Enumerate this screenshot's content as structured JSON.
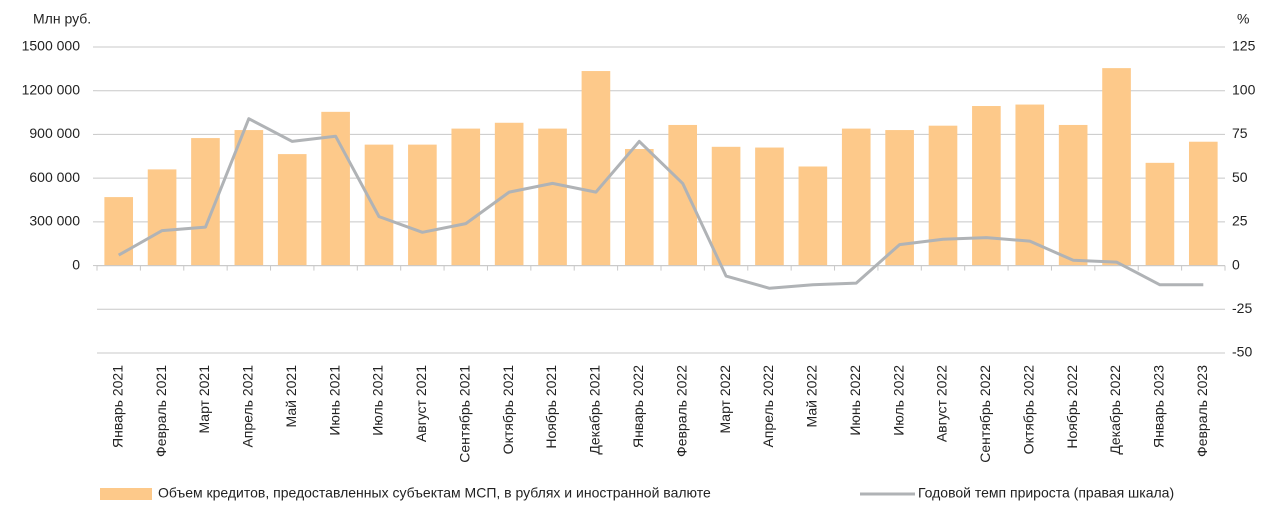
{
  "chart_data": {
    "type": "bar",
    "y_label": "Млн руб.",
    "y2_label": "%",
    "categories": [
      "Январь 2021",
      "Февраль 2021",
      "Март 2021",
      "Апрель 2021",
      "Май 2021",
      "Июнь 2021",
      "Июль 2021",
      "Август 2021",
      "Сентябрь 2021",
      "Октябрь 2021",
      "Ноябрь 2021",
      "Декабрь 2021",
      "Январь 2022",
      "Февраль 2022",
      "Март 2022",
      "Апрель 2022",
      "Май 2022",
      "Июнь 2022",
      "Июль 2022",
      "Август 2022",
      "Сентябрь 2022",
      "Октябрь 2022",
      "Ноябрь 2022",
      "Декабрь 2022",
      "Январь 2023",
      "Февраль 2023"
    ],
    "series": [
      {
        "name": "Объем кредитов, предоставленных субъектам МСП, в рублях и иностранной валюте",
        "type": "bar",
        "color": "#fdc98a",
        "values": [
          470000,
          660000,
          875000,
          930000,
          765000,
          1055000,
          830000,
          830000,
          940000,
          980000,
          940000,
          1335000,
          800000,
          965000,
          815000,
          810000,
          680000,
          940000,
          930000,
          960000,
          1095000,
          1105000,
          965000,
          1355000,
          705000,
          850000
        ]
      },
      {
        "name": "Годовой темп прироста (правая шкала)",
        "type": "line",
        "axis": "y2",
        "color": "#b0b3b6",
        "values": [
          6,
          20,
          22,
          84,
          71,
          74,
          28,
          19,
          24,
          42,
          47,
          42,
          71,
          47,
          -6,
          -13,
          -11,
          -10,
          12,
          15,
          16,
          14,
          3,
          2,
          -11,
          -11
        ]
      }
    ],
    "ylim": [
      -600000,
      1500000
    ],
    "yticks": [
      0,
      {
        "value": 300000,
        "label": "300 000"
      },
      {
        "value": 600000,
        "label": "600 000"
      },
      {
        "value": 900000,
        "label": "900 000"
      },
      {
        "value": 1200000,
        "label": "1200 000"
      },
      {
        "value": 1500000,
        "label": "1500 000"
      }
    ],
    "y2lim": [
      -50,
      125
    ],
    "y2ticks": [
      -50,
      -25,
      0,
      25,
      50,
      75,
      100,
      125
    ],
    "grid": true
  }
}
